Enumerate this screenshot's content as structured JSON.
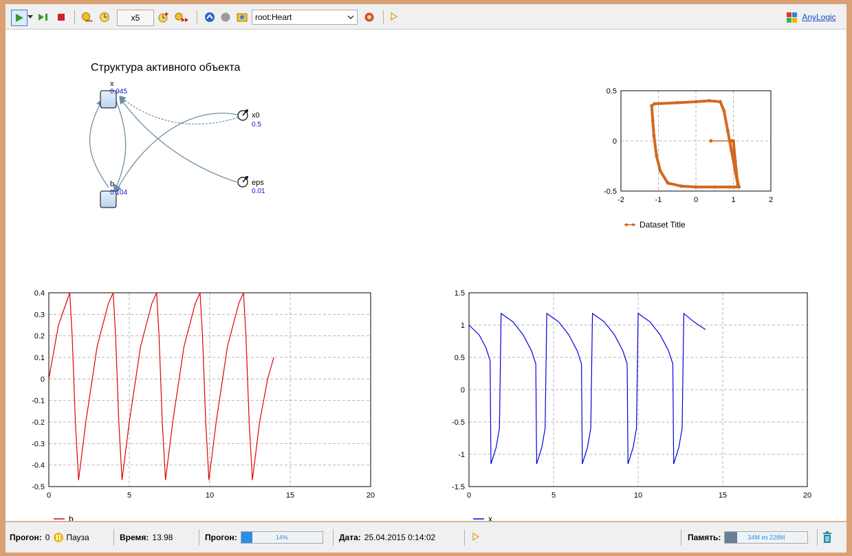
{
  "toolbar": {
    "speed_label": "x5",
    "object_selector": "root:Heart",
    "brand": "AnyLogic"
  },
  "structure": {
    "title": "Структура активного объекта",
    "nodes": [
      {
        "name": "x",
        "value": "0.945"
      },
      {
        "name": "b",
        "value": "0.104"
      },
      {
        "name": "x0",
        "value": "0.5"
      },
      {
        "name": "eps",
        "value": "0.01"
      }
    ]
  },
  "colors": {
    "phase": "#d2691e",
    "b": "#e00000",
    "x": "#0000e0",
    "link": "#6f8ea5"
  },
  "chart_data": [
    {
      "type": "scatter",
      "xlim": [
        -2,
        2
      ],
      "ylim": [
        -0.5,
        0.5
      ],
      "x_ticks": [
        "-2",
        "-1",
        "0",
        "1",
        "2"
      ],
      "y_ticks": [
        "0.5",
        "0",
        "-0.5"
      ],
      "grid": true,
      "legend_position": "bottom-left",
      "series": [
        {
          "name": "Dataset Title",
          "points": [
            [
              1.0,
              0.0
            ],
            [
              1.05,
              -0.2
            ],
            [
              1.1,
              -0.38
            ],
            [
              1.15,
              -0.46
            ],
            [
              0.9,
              -0.46
            ],
            [
              0.5,
              -0.46
            ],
            [
              0.0,
              -0.46
            ],
            [
              -0.4,
              -0.45
            ],
            [
              -0.75,
              -0.42
            ],
            [
              -0.95,
              -0.3
            ],
            [
              -1.05,
              -0.15
            ],
            [
              -1.12,
              0.05
            ],
            [
              -1.15,
              0.2
            ],
            [
              -1.18,
              0.35
            ],
            [
              -1.1,
              0.37
            ],
            [
              -0.5,
              0.38
            ],
            [
              0.0,
              0.39
            ],
            [
              0.35,
              0.4
            ],
            [
              0.65,
              0.39
            ],
            [
              0.75,
              0.3
            ],
            [
              0.85,
              0.1
            ],
            [
              0.95,
              -0.1
            ],
            [
              1.05,
              -0.3
            ],
            [
              1.12,
              -0.44
            ],
            [
              0.4,
              0.0
            ],
            [
              0.95,
              0.0
            ]
          ]
        }
      ]
    },
    {
      "type": "line",
      "xlim": [
        0,
        20
      ],
      "ylim": [
        -0.5,
        0.4
      ],
      "x_ticks": [
        "0",
        "5",
        "10",
        "15",
        "20"
      ],
      "y_ticks": [
        "0.4",
        "0.3",
        "0.2",
        "0.1",
        "0",
        "-0.1",
        "-0.2",
        "-0.3",
        "-0.4",
        "-0.5"
      ],
      "grid": true,
      "legend_position": "bottom-left",
      "series": [
        {
          "name": "b",
          "points": [
            [
              0,
              0.0
            ],
            [
              0.6,
              0.25
            ],
            [
              1.3,
              0.4
            ],
            [
              1.45,
              0.2
            ],
            [
              1.65,
              -0.2
            ],
            [
              1.85,
              -0.47
            ],
            [
              2.3,
              -0.2
            ],
            [
              3.0,
              0.15
            ],
            [
              3.7,
              0.35
            ],
            [
              4.0,
              0.4
            ],
            [
              4.15,
              0.2
            ],
            [
              4.35,
              -0.2
            ],
            [
              4.55,
              -0.47
            ],
            [
              5.0,
              -0.2
            ],
            [
              5.7,
              0.15
            ],
            [
              6.4,
              0.35
            ],
            [
              6.7,
              0.4
            ],
            [
              6.85,
              0.2
            ],
            [
              7.05,
              -0.2
            ],
            [
              7.25,
              -0.47
            ],
            [
              7.7,
              -0.2
            ],
            [
              8.4,
              0.15
            ],
            [
              9.1,
              0.35
            ],
            [
              9.4,
              0.4
            ],
            [
              9.55,
              0.2
            ],
            [
              9.75,
              -0.2
            ],
            [
              9.95,
              -0.47
            ],
            [
              10.4,
              -0.2
            ],
            [
              11.1,
              0.15
            ],
            [
              11.8,
              0.35
            ],
            [
              12.1,
              0.4
            ],
            [
              12.25,
              0.2
            ],
            [
              12.45,
              -0.2
            ],
            [
              12.65,
              -0.47
            ],
            [
              13.1,
              -0.2
            ],
            [
              13.6,
              0.0
            ],
            [
              13.98,
              0.1
            ]
          ]
        }
      ]
    },
    {
      "type": "line",
      "xlim": [
        0,
        20
      ],
      "ylim": [
        -1.5,
        1.5
      ],
      "x_ticks": [
        "0",
        "5",
        "10",
        "15",
        "20"
      ],
      "y_ticks": [
        "1.5",
        "1",
        "0.5",
        "0",
        "-0.5",
        "-1",
        "-1.5"
      ],
      "grid": true,
      "legend_position": "bottom-left",
      "series": [
        {
          "name": "x",
          "points": [
            [
              0,
              1.0
            ],
            [
              0.6,
              0.85
            ],
            [
              1.0,
              0.65
            ],
            [
              1.25,
              0.45
            ],
            [
              1.3,
              -1.15
            ],
            [
              1.6,
              -0.9
            ],
            [
              1.8,
              -0.6
            ],
            [
              1.9,
              1.18
            ],
            [
              2.6,
              1.05
            ],
            [
              3.2,
              0.85
            ],
            [
              3.7,
              0.6
            ],
            [
              3.95,
              0.4
            ],
            [
              4.0,
              -1.15
            ],
            [
              4.3,
              -0.9
            ],
            [
              4.5,
              -0.6
            ],
            [
              4.6,
              1.18
            ],
            [
              5.3,
              1.05
            ],
            [
              5.9,
              0.85
            ],
            [
              6.4,
              0.6
            ],
            [
              6.65,
              0.4
            ],
            [
              6.7,
              -1.15
            ],
            [
              7.0,
              -0.9
            ],
            [
              7.2,
              -0.6
            ],
            [
              7.3,
              1.18
            ],
            [
              8.0,
              1.05
            ],
            [
              8.6,
              0.85
            ],
            [
              9.1,
              0.6
            ],
            [
              9.35,
              0.4
            ],
            [
              9.4,
              -1.15
            ],
            [
              9.7,
              -0.9
            ],
            [
              9.9,
              -0.6
            ],
            [
              10.0,
              1.18
            ],
            [
              10.7,
              1.05
            ],
            [
              11.3,
              0.85
            ],
            [
              11.8,
              0.6
            ],
            [
              12.05,
              0.4
            ],
            [
              12.1,
              -1.15
            ],
            [
              12.4,
              -0.9
            ],
            [
              12.6,
              -0.6
            ],
            [
              12.7,
              1.18
            ],
            [
              13.3,
              1.05
            ],
            [
              13.98,
              0.93
            ]
          ]
        }
      ]
    }
  ],
  "status": {
    "run_label": "Прогон:",
    "run_value": "0",
    "state": "Пауза",
    "time_label": "Время:",
    "time_value": "13.98",
    "progress_label": "Прогон:",
    "progress_text": "14%",
    "progress_value": 0.14,
    "date_label": "Дата:",
    "date_value": "25.04.2015 0:14:02",
    "memory_label": "Память:",
    "memory_text": "34M из 228M",
    "memory_fraction": 0.149
  }
}
